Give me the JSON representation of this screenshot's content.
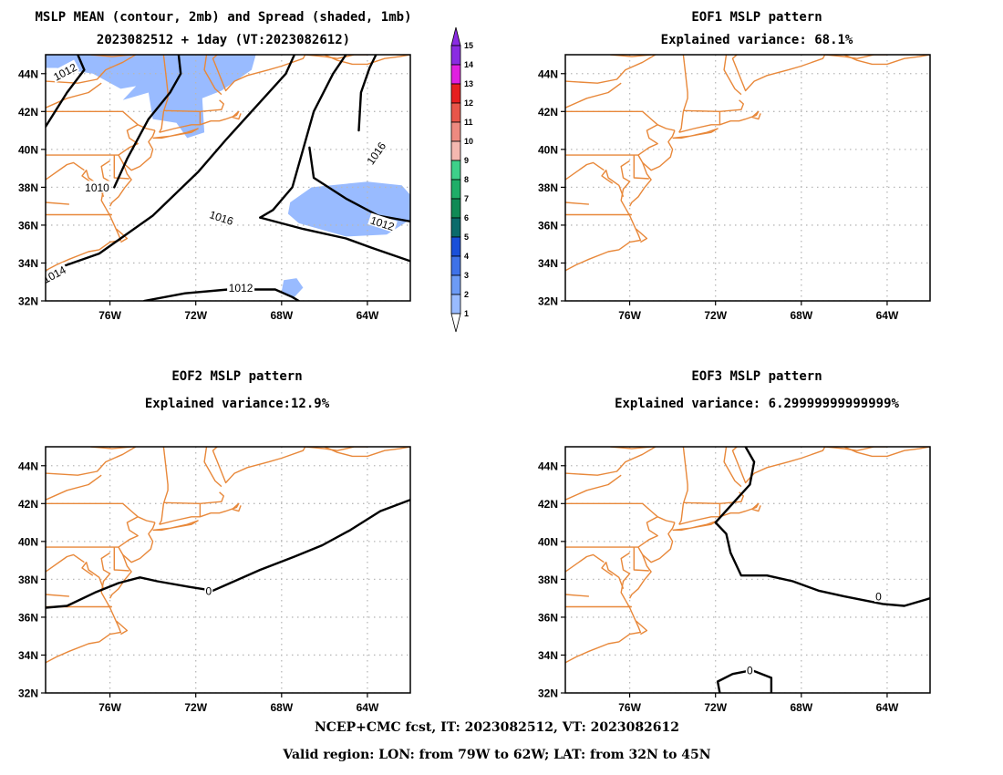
{
  "footer": {
    "line1": "NCEP+CMC fcst, IT: 2023082512, VT: 2023082612",
    "line2": "Valid region: LON: from 79W to 62W; LAT: from 32N to 45N"
  },
  "colors": {
    "coast": "#e8883a",
    "spread_shade": "#99bbff",
    "grid": "#b8b8b8",
    "contour": "#000000"
  },
  "colorbar": {
    "levels": [
      "1",
      "2",
      "3",
      "4",
      "5",
      "6",
      "7",
      "8",
      "9",
      "10",
      "11",
      "12",
      "13",
      "14",
      "15"
    ],
    "colors": [
      "#c6d8ff",
      "#99bbff",
      "#6d9bf5",
      "#3f72e8",
      "#1a4fd9",
      "#0b6b6b",
      "#108a55",
      "#1fae68",
      "#3ed08a",
      "#f4b8b0",
      "#ee8a80",
      "#e8564a",
      "#e61f1f",
      "#e020e0",
      "#8a2be2"
    ]
  },
  "chart_data": [
    {
      "type": "contour",
      "title": "MSLP MEAN (contour, 2mb) and Spread (shaded, 1mb)",
      "subtitle": "2023082512 + 1day (VT:2023082612)",
      "xlim": [
        -79,
        -62
      ],
      "ylim": [
        32,
        45
      ],
      "xticks": [
        "76W",
        "72W",
        "68W",
        "64W"
      ],
      "yticks": [
        "44N",
        "42N",
        "40N",
        "38N",
        "36N",
        "34N",
        "32N"
      ],
      "contour_labels": [
        "1012",
        "1010",
        "1014",
        "1016",
        "1016",
        "1012",
        "1012"
      ],
      "contours": [
        {
          "value": 1012,
          "points": [
            [
              -77.5,
              45
            ],
            [
              -77.2,
              44.2
            ],
            [
              -78,
              43
            ],
            [
              -79,
              41.2
            ]
          ]
        },
        {
          "value": 1010,
          "points": [
            [
              -75.8,
              38
            ],
            [
              -75.2,
              39.5
            ],
            [
              -74.2,
              41.6
            ],
            [
              -73.2,
              43
            ],
            [
              -72.7,
              44
            ],
            [
              -72.8,
              45
            ]
          ]
        },
        {
          "value": 1012,
          "points": [
            [
              -79,
              33.5
            ],
            [
              -76.5,
              34.5
            ],
            [
              -74,
              36.5
            ],
            [
              -71.9,
              38.8
            ],
            [
              -70.6,
              40.5
            ],
            [
              -69,
              42.5
            ],
            [
              -67.8,
              44
            ],
            [
              -67.4,
              45
            ]
          ]
        },
        {
          "value": 1014,
          "points": [
            [
              -69,
              36.4
            ],
            [
              -68.4,
              36.8
            ],
            [
              -67.5,
              38
            ],
            [
              -67,
              40
            ],
            [
              -66.5,
              42
            ],
            [
              -65.6,
              44
            ],
            [
              -65,
              45
            ]
          ]
        },
        {
          "value": 1016,
          "points": [
            [
              -64.4,
              41
            ],
            [
              -64.3,
              43
            ],
            [
              -63.9,
              44.3
            ],
            [
              -63.6,
              45
            ]
          ]
        },
        {
          "value": 1014,
          "points": [
            [
              -69,
              36.4
            ],
            [
              -67,
              35.8
            ],
            [
              -65,
              35.3
            ],
            [
              -63.8,
              34.8
            ],
            [
              -62,
              34.1
            ]
          ]
        },
        {
          "value": 1016,
          "points": [
            [
              -66.7,
              40.1
            ],
            [
              -66.5,
              38.5
            ],
            [
              -65,
              37.4
            ],
            [
              -63.5,
              36.5
            ],
            [
              -62,
              36.2
            ]
          ]
        },
        {
          "value": 1012,
          "points": [
            [
              -74.4,
              32
            ],
            [
              -72.5,
              32.4
            ],
            [
              -70.5,
              32.6
            ],
            [
              -68.3,
              32.6
            ],
            [
              -67.5,
              32.2
            ],
            [
              -67.2,
              32
            ]
          ]
        }
      ],
      "shaded_spread": [
        {
          "value": 2,
          "points": [
            [
              -79,
              45
            ],
            [
              -73.5,
              45
            ],
            [
              -73.6,
              44.1
            ],
            [
              -74.5,
              43.4
            ],
            [
              -75.5,
              43.2
            ],
            [
              -76.8,
              44
            ],
            [
              -78.5,
              44.3
            ],
            [
              -79,
              44.3
            ]
          ]
        },
        {
          "value": 2,
          "points": [
            [
              -73.5,
              45
            ],
            [
              -69.2,
              45
            ],
            [
              -69.4,
              44.2
            ],
            [
              -70.8,
              43.1
            ],
            [
              -71.7,
              42.7
            ],
            [
              -71.6,
              40.9
            ],
            [
              -72.4,
              40.6
            ],
            [
              -72.9,
              41.4
            ],
            [
              -74,
              41.6
            ],
            [
              -74.2,
              43
            ],
            [
              -75.4,
              42.6
            ],
            [
              -74.4,
              43.8
            ]
          ]
        },
        {
          "value": 2,
          "points": [
            [
              -67.6,
              37.2
            ],
            [
              -66.6,
              38
            ],
            [
              -64,
              38.3
            ],
            [
              -62.4,
              38.1
            ],
            [
              -62,
              37.6
            ],
            [
              -62,
              36.3
            ],
            [
              -63.1,
              35.5
            ],
            [
              -65,
              35.4
            ],
            [
              -67.2,
              36.1
            ],
            [
              -67.7,
              36.6
            ]
          ]
        },
        {
          "value": 2,
          "points": [
            [
              -67.9,
              33.1
            ],
            [
              -67.3,
              33.2
            ],
            [
              -67,
              32.7
            ],
            [
              -67.4,
              32.2
            ],
            [
              -68,
              32.5
            ]
          ]
        }
      ]
    },
    {
      "type": "contour",
      "title": "EOF1 MSLP pattern",
      "subtitle": "Explained variance: 68.1%",
      "xlim": [
        -79,
        -62
      ],
      "ylim": [
        32,
        45
      ],
      "xticks": [
        "76W",
        "72W",
        "68W",
        "64W"
      ],
      "yticks": [
        "44N",
        "42N",
        "40N",
        "38N",
        "36N",
        "34N",
        "32N"
      ],
      "contour_labels": [],
      "contours": []
    },
    {
      "type": "contour",
      "title": "EOF2 MSLP pattern",
      "subtitle": "Explained variance:12.9%",
      "xlim": [
        -79,
        -62
      ],
      "ylim": [
        32,
        45
      ],
      "xticks": [
        "76W",
        "72W",
        "68W",
        "64W"
      ],
      "yticks": [
        "44N",
        "42N",
        "40N",
        "38N",
        "36N",
        "34N",
        "32N"
      ],
      "contour_labels": [
        "0"
      ],
      "contours": [
        {
          "value": 0,
          "points": [
            [
              -79,
              36.5
            ],
            [
              -78,
              36.6
            ],
            [
              -76.7,
              37.3
            ],
            [
              -75.6,
              37.8
            ],
            [
              -74.6,
              38.1
            ],
            [
              -73.8,
              37.9
            ],
            [
              -72.3,
              37.6
            ],
            [
              -71.2,
              37.4
            ],
            [
              -70.4,
              37.8
            ],
            [
              -69,
              38.5
            ],
            [
              -67.4,
              39.2
            ],
            [
              -66.1,
              39.8
            ],
            [
              -64.8,
              40.6
            ],
            [
              -63.4,
              41.6
            ],
            [
              -62,
              42.2
            ]
          ]
        }
      ]
    },
    {
      "type": "contour",
      "title": "EOF3 MSLP pattern",
      "subtitle": "Explained variance: 6.29999999999999%",
      "xlim": [
        -79,
        -62
      ],
      "ylim": [
        32,
        45
      ],
      "xticks": [
        "76W",
        "72W",
        "68W",
        "64W"
      ],
      "yticks": [
        "44N",
        "42N",
        "40N",
        "38N",
        "36N",
        "34N",
        "32N"
      ],
      "contour_labels": [
        "0",
        "0"
      ],
      "contours": [
        {
          "value": 0,
          "points": [
            [
              -70.6,
              45
            ],
            [
              -70.2,
              44.2
            ],
            [
              -70.4,
              43
            ],
            [
              -71.2,
              42
            ],
            [
              -72,
              41
            ],
            [
              -71.5,
              40.4
            ],
            [
              -71.3,
              39.4
            ],
            [
              -70.8,
              38.2
            ],
            [
              -69.6,
              38.2
            ],
            [
              -68.4,
              37.9
            ],
            [
              -67.2,
              37.4
            ],
            [
              -66,
              37.1
            ],
            [
              -64.2,
              36.7
            ],
            [
              -63.2,
              36.6
            ],
            [
              -62,
              37
            ]
          ]
        },
        {
          "value": 0,
          "points": [
            [
              -71.8,
              32
            ],
            [
              -71.9,
              32.6
            ],
            [
              -71.2,
              33
            ],
            [
              -70.3,
              33.2
            ],
            [
              -69.4,
              32.8
            ],
            [
              -69.4,
              32
            ]
          ]
        }
      ]
    }
  ]
}
